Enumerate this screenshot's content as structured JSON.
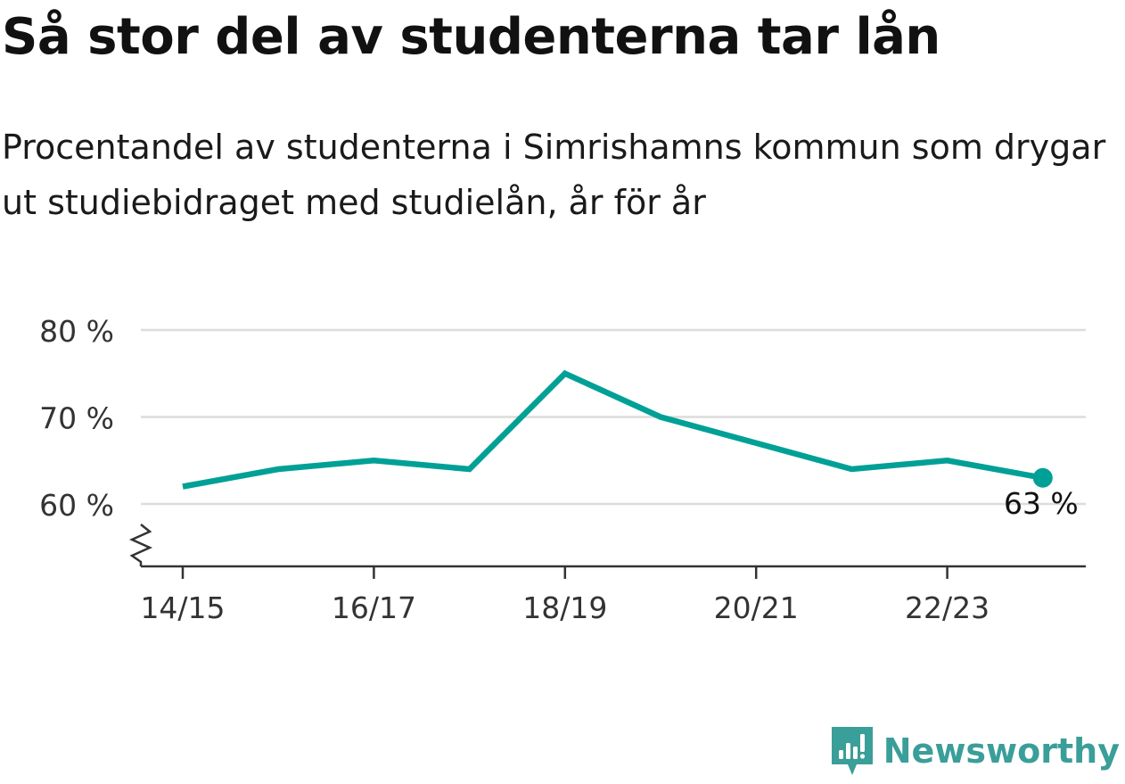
{
  "header": {
    "title": "Så stor del av studenterna tar lån",
    "subtitle": "Procentandel av studenterna i Simrishamns kommun som drygar ut studiebidraget med studielån, år för år"
  },
  "colors": {
    "line": "#00a096",
    "grid": "#dcdcdc",
    "axis": "#333333",
    "brand": "#3a9e99"
  },
  "chart_data": {
    "type": "line",
    "title": "Så stor del av studenterna tar lån",
    "subtitle": "Procentandel av studenterna i Simrishamns kommun som drygar ut studiebidraget med studielån, år för år",
    "x": [
      "14/15",
      "15/16",
      "16/17",
      "17/18",
      "18/19",
      "19/20",
      "20/21",
      "21/22",
      "22/23",
      "23/24"
    ],
    "series": [
      {
        "values": [
          62,
          64,
          65,
          64,
          75,
          70,
          67,
          64,
          65,
          63
        ]
      }
    ],
    "x_tick_labels": [
      "14/15",
      "16/17",
      "18/19",
      "20/21",
      "22/23"
    ],
    "y_ticks": [
      60,
      70,
      80
    ],
    "y_tick_labels": [
      "60 %",
      "70 %",
      "80 %"
    ],
    "ylim": [
      53,
      80
    ],
    "axis_break": true,
    "grid": true,
    "end_label": "63 %"
  },
  "brand": {
    "name": "Newsworthy",
    "icon": "newsworthy-logo-icon"
  }
}
